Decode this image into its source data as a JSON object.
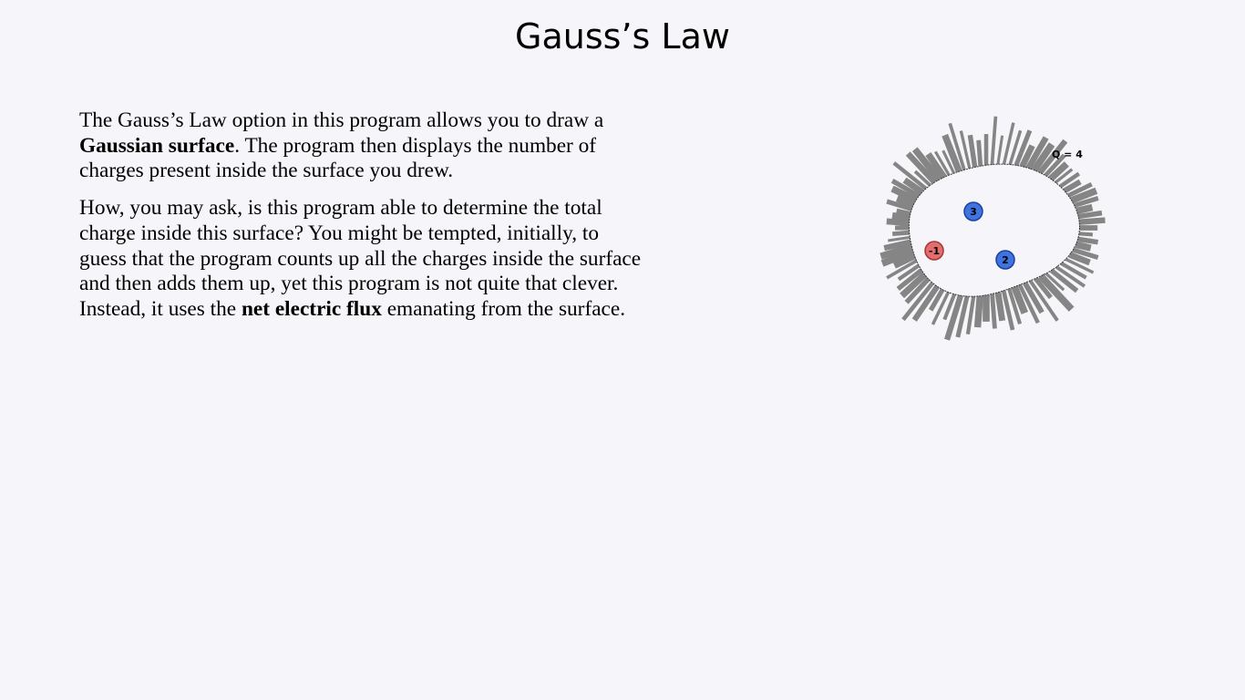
{
  "slide": {
    "title": "Gauss’s Law"
  },
  "body": {
    "p1_part1": "The Gauss’s Law option in this program allows you to draw a ",
    "p1_bold": "Gaussian surface",
    "p1_part2": ". The program then displays the number of charges present inside the surface you drew.",
    "p2_part1": "How, you may ask, is this program able to determine the total charge inside this surface? You might be tempted, initially, to guess that the program counts up all the charges inside the surface and then adds them up, yet this program is not quite that clever. Instead, it uses the ",
    "p2_bold": "net electric flux",
    "p2_part2": " emanating from the surface."
  },
  "figure": {
    "total_charge_label": "Q = 4",
    "charges": [
      {
        "label": "3",
        "value": 3,
        "sign": "positive"
      },
      {
        "label": "-1",
        "value": -1,
        "sign": "negative"
      },
      {
        "label": "2",
        "value": 2,
        "sign": "positive"
      }
    ],
    "colors": {
      "flux_bar": "#858585",
      "positive_charge": "#3f74e0",
      "negative_charge": "#e26e6e",
      "surface_line": "#333333"
    }
  }
}
